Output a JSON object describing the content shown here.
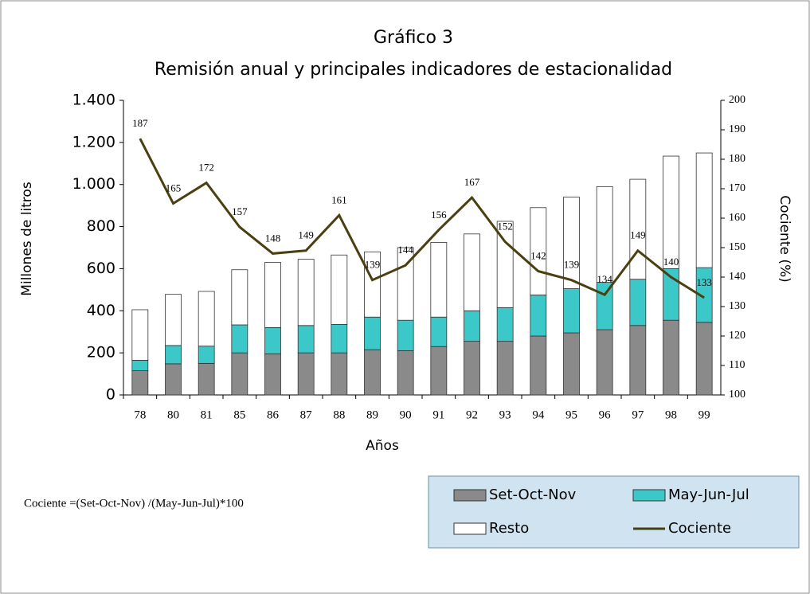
{
  "chart_data": {
    "type": "bar-line",
    "title": [
      "Gráfico 3",
      "Remisión anual y principales indicadores de estacionalidad"
    ],
    "x_label": "Años",
    "y_label": "Millones de litros",
    "y2_label": "Cociente (%)",
    "annotation": "Cociente =(Set-Oct-Nov) /(May-Jun-Jul)*100",
    "categories": [
      "78",
      "80",
      "81",
      "85",
      "86",
      "87",
      "88",
      "89",
      "90",
      "91",
      "92",
      "93",
      "94",
      "95",
      "96",
      "97",
      "98",
      "99"
    ],
    "series": [
      {
        "name": "Set-Oct-Nov",
        "type": "bar",
        "color": "#8a8a8a",
        "values": [
          115,
          148,
          150,
          200,
          195,
          200,
          200,
          215,
          210,
          230,
          255,
          255,
          280,
          295,
          310,
          330,
          355,
          345
        ]
      },
      {
        "name": "May-Jun-Jul",
        "type": "bar",
        "color": "#3cc8c8",
        "values": [
          50,
          87,
          82,
          133,
          125,
          130,
          135,
          155,
          145,
          140,
          145,
          160,
          195,
          210,
          225,
          220,
          245,
          260
        ]
      },
      {
        "name": "Resto",
        "type": "bar",
        "color": "#ffffff",
        "values": [
          240,
          243,
          260,
          262,
          310,
          315,
          330,
          310,
          345,
          355,
          365,
          410,
          415,
          435,
          455,
          475,
          535,
          545
        ]
      },
      {
        "name": "Cociente",
        "type": "line",
        "axis": "y2",
        "color": "#4a3f10",
        "values": [
          187,
          165,
          172,
          157,
          148,
          149,
          161,
          139,
          144,
          156,
          167,
          152,
          142,
          139,
          134,
          149,
          140,
          133
        ]
      }
    ],
    "ylim": [
      0,
      1400
    ],
    "yticks": [
      0,
      200,
      400,
      600,
      800,
      {
        "value": 1000,
        "label": "1.000"
      },
      {
        "value": 1200,
        "label": "1.200"
      },
      {
        "value": 1400,
        "label": "1.400"
      }
    ],
    "y2lim": [
      100,
      200
    ],
    "y2ticks": [
      100,
      110,
      120,
      130,
      140,
      150,
      160,
      170,
      180,
      190,
      200
    ],
    "legend": "bottom-right"
  }
}
